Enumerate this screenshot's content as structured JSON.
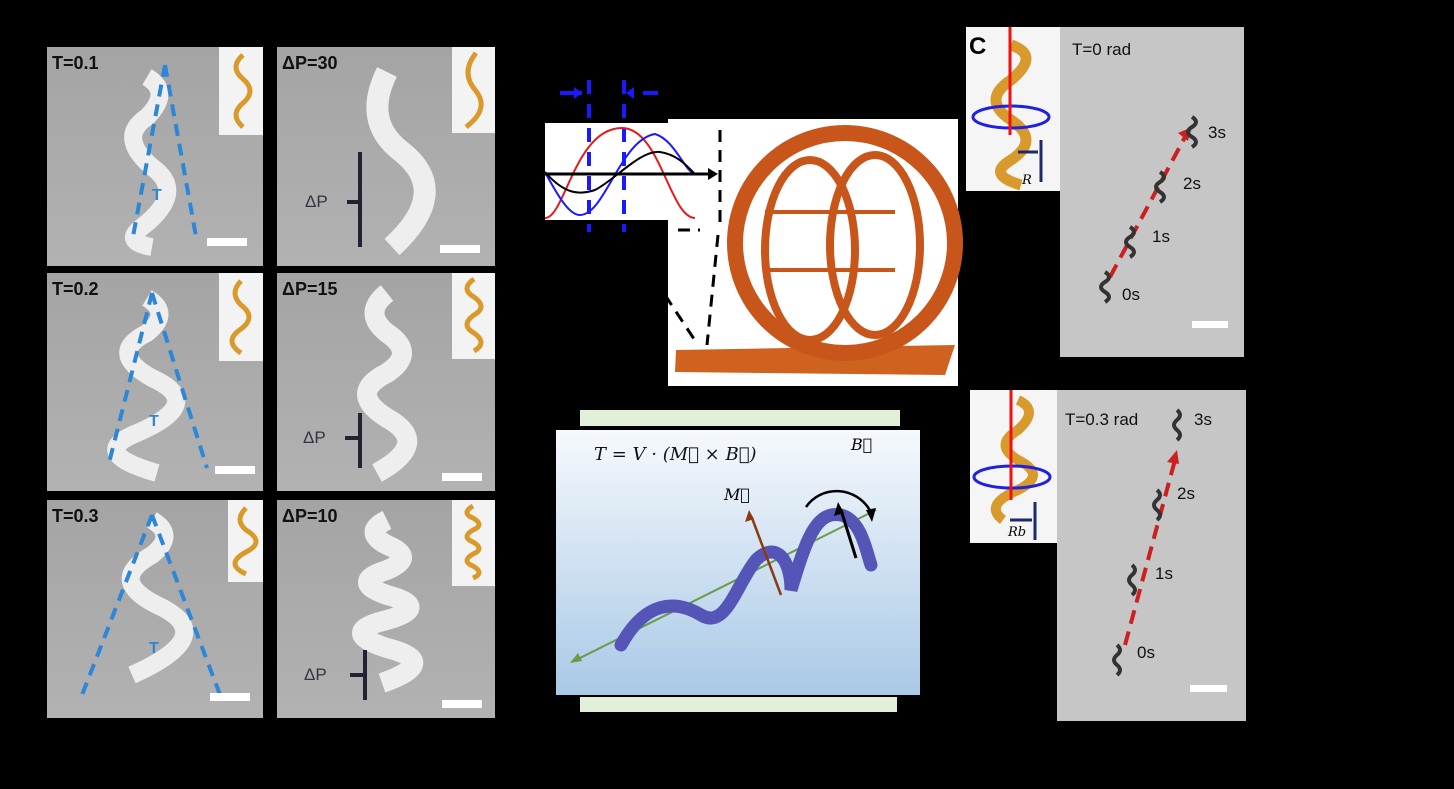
{
  "panel_a": {
    "taper": [
      {
        "label": "T=0.1",
        "marker": "T"
      },
      {
        "label": "T=0.2",
        "marker": "T"
      },
      {
        "label": "T=0.3",
        "marker": "T"
      }
    ],
    "pitch": [
      {
        "label": "ΔP=30",
        "marker": "ΔP"
      },
      {
        "label": "ΔP=15",
        "marker": "ΔP"
      },
      {
        "label": "ΔP=10",
        "marker": "ΔP"
      }
    ]
  },
  "panel_b": {
    "equation": "T = V · (M⃗ × B⃗)",
    "m_label": "M⃗",
    "b_label": "B⃗"
  },
  "panel_c": {
    "letter": "C",
    "top": {
      "title": "T=0 rad",
      "radius_label": "R",
      "times": [
        "0s",
        "1s",
        "2s",
        "3s"
      ]
    },
    "bottom": {
      "title": "T=0.3 rad",
      "radius_label": "Rb",
      "times": [
        "0s",
        "1s",
        "2s",
        "3s"
      ]
    }
  },
  "colors": {
    "helix_gold": "#d99a2b",
    "taper_line": "#2e86d6",
    "trajectory": "#cc1f1f",
    "ring": "#c8561a",
    "field_helix": "#5555b8",
    "axis_green": "#6a9a4a"
  }
}
